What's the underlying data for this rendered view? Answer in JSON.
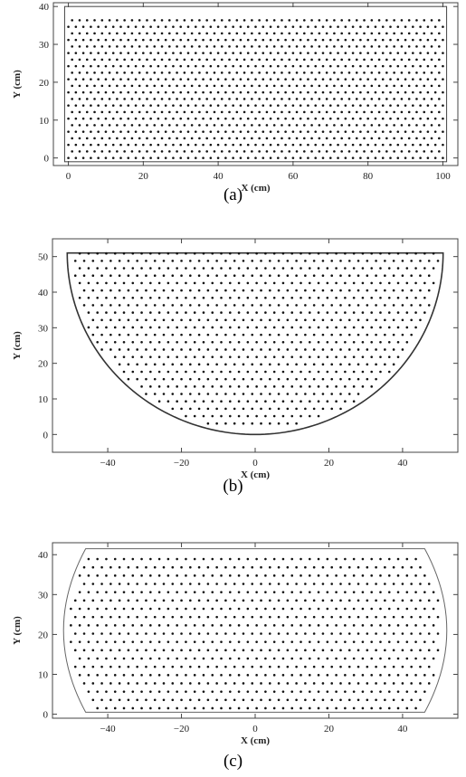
{
  "chart_data": [
    {
      "type": "scatter",
      "panel_label": "(a)",
      "xlabel": "X (cm)",
      "ylabel": "Y (cm)",
      "xlim": [
        -4,
        104
      ],
      "ylim": [
        -2,
        41
      ],
      "xticks": [
        0,
        20,
        40,
        60,
        80,
        100
      ],
      "yticks": [
        0,
        10,
        20,
        30,
        40
      ],
      "boundary": {
        "shape": "rectangle",
        "x": [
          -1,
          101
        ],
        "y": [
          -1,
          40
        ]
      },
      "lattice": {
        "pattern": "hexagonal",
        "x_range": [
          0,
          100
        ],
        "y_range": [
          0,
          38
        ],
        "pitch": 2
      }
    },
    {
      "type": "scatter",
      "panel_label": "(b)",
      "xlabel": "X (cm)",
      "ylabel": "Y (cm)",
      "xlim": [
        -55,
        55
      ],
      "ylim": [
        -5,
        55
      ],
      "xticks": [
        -40,
        -20,
        0,
        20,
        40
      ],
      "yticks": [
        0,
        10,
        20,
        30,
        40,
        50
      ],
      "boundary": {
        "shape": "half-disk",
        "center": [
          0,
          51
        ],
        "radius": 51
      },
      "lattice": {
        "pattern": "hexagonal",
        "x_range": [
          -50,
          50
        ],
        "y_range": [
          1,
          51
        ],
        "pitch": 2.4
      }
    },
    {
      "type": "scatter",
      "panel_label": "(c)",
      "xlabel": "X (cm)",
      "ylabel": "Y (cm)",
      "xlim": [
        -55,
        55
      ],
      "ylim": [
        -1,
        43
      ],
      "xticks": [
        -40,
        -20,
        0,
        20,
        40
      ],
      "yticks": [
        0,
        10,
        20,
        30,
        40
      ],
      "boundary": {
        "shape": "barrel",
        "y": [
          0.5,
          41.5
        ],
        "x_edge": 46,
        "x_bulge": 52
      },
      "lattice": {
        "pattern": "hexagonal",
        "x_range": [
          -50,
          50
        ],
        "y_range": [
          1.5,
          40
        ],
        "pitch": 2.4
      }
    }
  ]
}
